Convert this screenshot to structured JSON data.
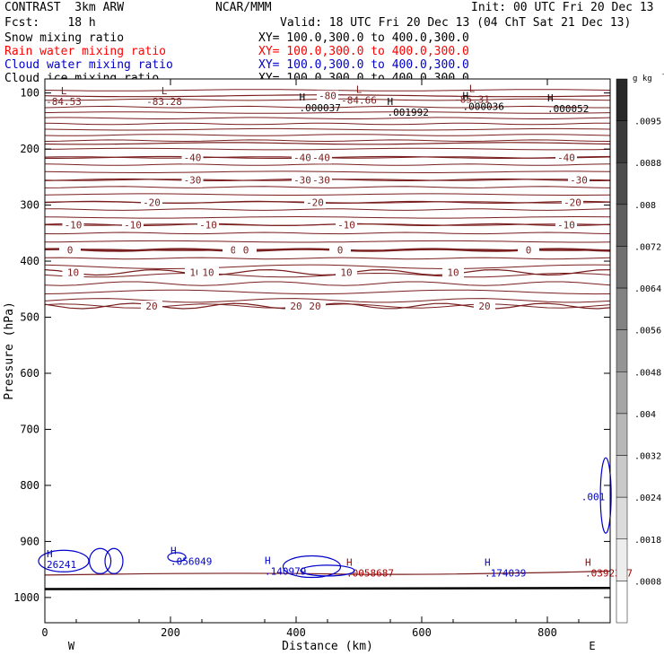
{
  "header": {
    "left1": "CONTRAST  3km ARW",
    "center1": "NCAR/MMM",
    "right1": "Init: 00 UTC Fri 20 Dec 13",
    "left2": "Fcst:    18 h",
    "right2": "Valid: 18 UTC Fri 20 Dec 13 (04 ChT Sat 21 Dec 13)",
    "fields": [
      {
        "name": "Snow mixing ratio",
        "xy": "XY= 100.0,300.0 to 400.0,300.0",
        "color": "#000000"
      },
      {
        "name": "Rain water mixing ratio",
        "xy": "XY= 100.0,300.0 to 400.0,300.0",
        "color": "#ff0000"
      },
      {
        "name": "Cloud water mixing ratio",
        "xy": "XY= 100.0,300.0 to 400.0,300.0",
        "color": "#0000cc"
      },
      {
        "name": "Cloud ice mixing ratio",
        "xy": "XY= 100.0,300.0 to 400.0,300.0",
        "color": "#000000"
      }
    ]
  },
  "chart_data": {
    "type": "contour",
    "xlabel": "Distance (km)",
    "ylabel": "Pressure (hPa)",
    "xlim": [
      0,
      900
    ],
    "ylim": [
      1000,
      100
    ],
    "xticks": [
      0,
      200,
      400,
      600,
      800
    ],
    "yticks": [
      100,
      200,
      300,
      400,
      500,
      600,
      700,
      800,
      900,
      1000
    ],
    "x_end_labels": {
      "left": "W",
      "right": "E"
    },
    "colorbar": {
      "unit": "g kg",
      "unit_exp": "-1",
      "ticks": [
        ".0095",
        ".0088",
        ".008",
        ".0072",
        ".0064",
        ".0056",
        ".0048",
        ".004",
        ".0032",
        ".0024",
        ".0018",
        ".0008"
      ]
    },
    "temperature_contours": [
      {
        "p": 105,
        "label": "-80",
        "x": [
          450
        ]
      },
      {
        "p": 190,
        "label": "",
        "x": []
      },
      {
        "p": 215,
        "label": "-40",
        "x": [
          235,
          410,
          440,
          830
        ]
      },
      {
        "p": 255,
        "label": "-30",
        "x": [
          235,
          410,
          440,
          850
        ]
      },
      {
        "p": 295,
        "label": "-20",
        "x": [
          170,
          430,
          840
        ]
      },
      {
        "p": 335,
        "label": "-10",
        "x": [
          45,
          140,
          260,
          480,
          830
        ]
      },
      {
        "p": 380,
        "label": "0",
        "x": [
          40,
          300,
          320,
          470,
          770
        ]
      },
      {
        "p": 420,
        "label": "10",
        "x": [
          45,
          240,
          260,
          480,
          650
        ]
      },
      {
        "p": 480,
        "label": "20",
        "x": [
          170,
          400,
          430,
          700
        ]
      }
    ],
    "lows": [
      {
        "x": 30,
        "p": 110,
        "value": "-84.53"
      },
      {
        "x": 190,
        "p": 110,
        "value": "-83.28"
      },
      {
        "x": 500,
        "p": 108,
        "value": "-84.66"
      },
      {
        "x": 680,
        "p": 106,
        "value": "-85.31"
      }
    ],
    "highs": [
      {
        "x": 405,
        "p": 123,
        "value": ".000037",
        "color": "#000000"
      },
      {
        "x": 545,
        "p": 131,
        "value": ".001992",
        "color": "#000000"
      },
      {
        "x": 665,
        "p": 121,
        "value": ".000036",
        "color": "#000000"
      },
      {
        "x": 800,
        "p": 125,
        "value": ".000052",
        "color": "#000000"
      },
      {
        "x": 0,
        "p": 938,
        "value": "26241",
        "color": "#0000cc"
      },
      {
        "x": 200,
        "p": 932,
        "value": ".056049",
        "color": "#0000cc"
      },
      {
        "x": 350,
        "p": 950,
        "value": ".140979",
        "color": "#0000cc"
      },
      {
        "x": 480,
        "p": 953,
        "value": ".0058687",
        "color": "#aa0000"
      },
      {
        "x": 700,
        "p": 953,
        "value": ".174039",
        "color": "#0000cc"
      },
      {
        "x": 860,
        "p": 953,
        "value": ".0392317",
        "color": "#aa0000"
      }
    ],
    "cloud_label": {
      "x": 880,
      "p": 820,
      "value": ".001"
    }
  }
}
